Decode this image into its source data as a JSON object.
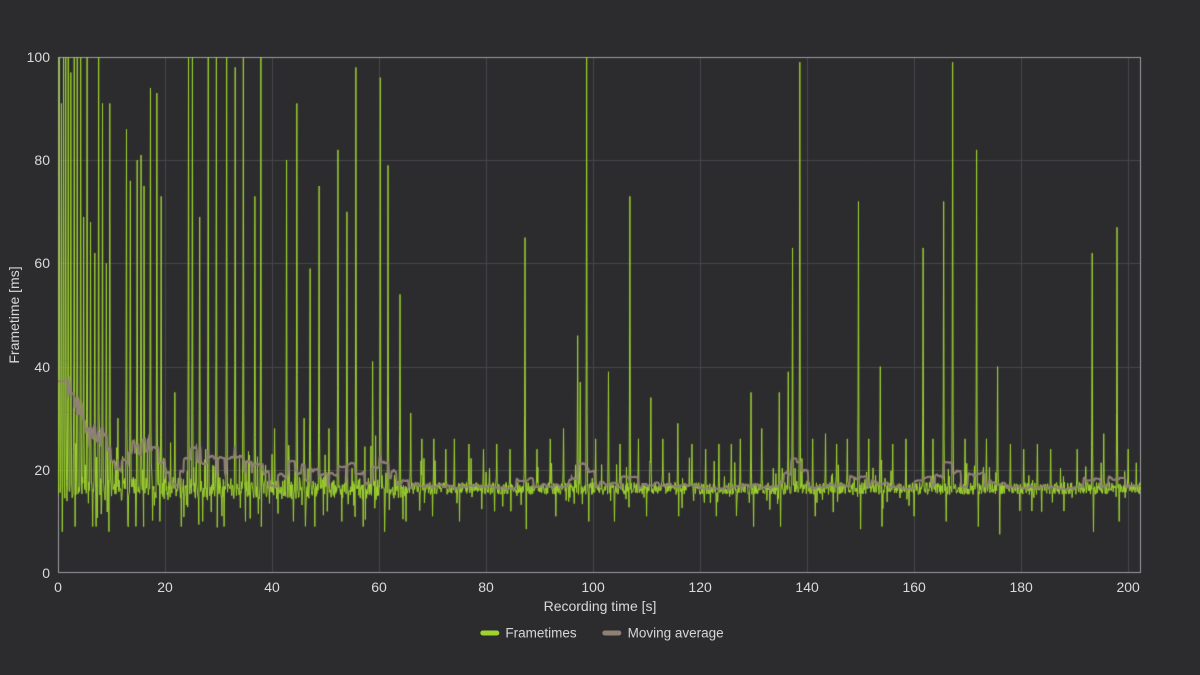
{
  "window": {
    "background_color": "#2c2c2f"
  },
  "colors": {
    "plot_border": "#9d9da1",
    "gridline": "#47474b",
    "tick_text": "#dadada",
    "axis_title_text": "#d9d9d9"
  },
  "chart_data": {
    "type": "line",
    "title": "",
    "xlabel": "Recording time [s]",
    "ylabel": "Frametime [ms]",
    "xlim": [
      0,
      202.4
    ],
    "ylim": [
      0,
      100
    ],
    "x_ticks": [
      0,
      20,
      40,
      60,
      80,
      100,
      120,
      140,
      160,
      180,
      200
    ],
    "y_ticks": [
      0,
      20,
      40,
      60,
      80,
      100
    ],
    "grid": true,
    "legend_position": "bottom-center",
    "series": [
      {
        "name": "Frametimes",
        "color": "#9ed22e",
        "type": "noisy-line",
        "baseline_mean_ms": 16.4,
        "baseline_noise_ms": 2.4,
        "noisy_until_s": 65,
        "spikes": [
          [
            0.2,
            100
          ],
          [
            0.6,
            91
          ],
          [
            1.0,
            100
          ],
          [
            1.4,
            100
          ],
          [
            1.9,
            100
          ],
          [
            2.4,
            97
          ],
          [
            3.0,
            100
          ],
          [
            3.6,
            100
          ],
          [
            4.2,
            100
          ],
          [
            4.8,
            69
          ],
          [
            5.4,
            100
          ],
          [
            6.1,
            68
          ],
          [
            6.9,
            62
          ],
          [
            7.6,
            100
          ],
          [
            8.3,
            91
          ],
          [
            9.0,
            60
          ],
          [
            9.7,
            91
          ],
          [
            11.2,
            30
          ],
          [
            12.8,
            86
          ],
          [
            13.5,
            76
          ],
          [
            14.8,
            80
          ],
          [
            15.5,
            81
          ],
          [
            16.1,
            75
          ],
          [
            17.3,
            94
          ],
          [
            18.5,
            93
          ],
          [
            19.3,
            73
          ],
          [
            21.8,
            35
          ],
          [
            24.4,
            100
          ],
          [
            25.1,
            100
          ],
          [
            26.5,
            69
          ],
          [
            28.1,
            100
          ],
          [
            29.6,
            100
          ],
          [
            31.5,
            100
          ],
          [
            33.1,
            98
          ],
          [
            34.6,
            100
          ],
          [
            36.8,
            73
          ],
          [
            37.9,
            100
          ],
          [
            40.5,
            28
          ],
          [
            42.7,
            80
          ],
          [
            44.6,
            91
          ],
          [
            46.0,
            30
          ],
          [
            47.1,
            59
          ],
          [
            48.8,
            75
          ],
          [
            50.6,
            28
          ],
          [
            52.3,
            82
          ],
          [
            54.0,
            70
          ],
          [
            55.7,
            98
          ],
          [
            58.8,
            41
          ],
          [
            60.2,
            96
          ],
          [
            61.7,
            79
          ],
          [
            63.9,
            54
          ],
          [
            65.9,
            31
          ],
          [
            68.0,
            26
          ],
          [
            70.2,
            26
          ],
          [
            72.5,
            24
          ],
          [
            74.1,
            26
          ],
          [
            76.8,
            25
          ],
          [
            79.5,
            24
          ],
          [
            82.0,
            25
          ],
          [
            84.5,
            24
          ],
          [
            87.3,
            65
          ],
          [
            89.5,
            24
          ],
          [
            92.0,
            26
          ],
          [
            94.5,
            28
          ],
          [
            97.1,
            46
          ],
          [
            97.6,
            37
          ],
          [
            98.8,
            100
          ],
          [
            100.5,
            26
          ],
          [
            102.9,
            39
          ],
          [
            105.0,
            25
          ],
          [
            106.9,
            73
          ],
          [
            108.5,
            26
          ],
          [
            110.8,
            34
          ],
          [
            113.0,
            26
          ],
          [
            115.8,
            29
          ],
          [
            118.5,
            25
          ],
          [
            121.0,
            24
          ],
          [
            123.5,
            25
          ],
          [
            125.8,
            25
          ],
          [
            127.5,
            26
          ],
          [
            129.5,
            35
          ],
          [
            131.5,
            28
          ],
          [
            134.8,
            35
          ],
          [
            136.5,
            39
          ],
          [
            137.3,
            63
          ],
          [
            138.6,
            99
          ],
          [
            141.0,
            26
          ],
          [
            143.4,
            27
          ],
          [
            145.5,
            25
          ],
          [
            147.5,
            26
          ],
          [
            149.6,
            72
          ],
          [
            151.5,
            26
          ],
          [
            153.7,
            40
          ],
          [
            156.0,
            25
          ],
          [
            158.5,
            26
          ],
          [
            161.7,
            63
          ],
          [
            163.5,
            26
          ],
          [
            165.5,
            72
          ],
          [
            167.2,
            99
          ],
          [
            169.5,
            26
          ],
          [
            171.7,
            82
          ],
          [
            173.5,
            26
          ],
          [
            175.6,
            40
          ],
          [
            178.0,
            25
          ],
          [
            180.5,
            24
          ],
          [
            183.0,
            25
          ],
          [
            185.5,
            24
          ],
          [
            188.0,
            25
          ],
          [
            190.5,
            24
          ],
          [
            193.3,
            62
          ],
          [
            195.4,
            27
          ],
          [
            197.9,
            67
          ],
          [
            200.0,
            24
          ]
        ],
        "dips": [
          [
            0.8,
            8
          ],
          [
            3.2,
            9
          ],
          [
            6.5,
            9
          ],
          [
            9.5,
            8
          ],
          [
            13.0,
            10
          ],
          [
            16.0,
            9
          ],
          [
            19.0,
            10
          ],
          [
            23.0,
            9
          ],
          [
            27.0,
            10
          ],
          [
            31.0,
            9
          ],
          [
            35.0,
            10
          ],
          [
            38.0,
            9
          ],
          [
            44.0,
            10
          ],
          [
            48.0,
            9
          ],
          [
            53.0,
            10
          ],
          [
            57.0,
            9
          ],
          [
            61.0,
            8
          ],
          [
            65.0,
            10
          ],
          [
            70.0,
            11
          ],
          [
            75.0,
            10
          ],
          [
            87.5,
            8.5
          ],
          [
            93.0,
            11
          ],
          [
            99.2,
            10
          ],
          [
            104.0,
            10
          ],
          [
            110.0,
            11
          ],
          [
            116.0,
            11
          ],
          [
            123.0,
            11
          ],
          [
            130.0,
            9
          ],
          [
            135.0,
            9
          ],
          [
            141.5,
            11
          ],
          [
            150.0,
            8.5
          ],
          [
            154.0,
            9
          ],
          [
            160.0,
            11
          ],
          [
            166.0,
            10
          ],
          [
            172.0,
            9
          ],
          [
            176.0,
            7.5
          ],
          [
            182.0,
            12
          ],
          [
            188.0,
            12
          ],
          [
            193.5,
            8
          ],
          [
            198.3,
            10
          ]
        ]
      },
      {
        "name": "Moving average",
        "color": "#8e8173",
        "type": "moving-average",
        "window_s": 3.2
      }
    ]
  }
}
